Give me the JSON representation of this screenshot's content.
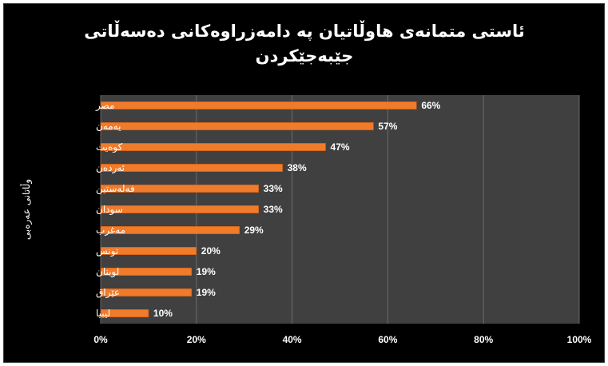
{
  "chart_data": {
    "type": "bar",
    "orientation": "horizontal",
    "title": "ئاستی متمانەی هاوڵاتیان پە دامەزراوەکانی  دەسەڵاتی جێبەجێکردن",
    "title_lines": [
      "ئاستی متمانەی هاوڵاتیان پە دامەزراوەکانی  دەسەڵاتی",
      "جێبەجێکردن"
    ],
    "ylabel": "وڵاتانی عەرەبی",
    "xlabel": "",
    "categories": [
      "مصر",
      "یەمەن",
      "کوەیت",
      "ئەردەن",
      "فەلەستین",
      "سودان",
      "مەغرب",
      "تونس",
      "لوبنان",
      "عێراق",
      "لیبیا"
    ],
    "values": [
      66,
      57,
      47,
      38,
      33,
      33,
      29,
      20,
      19,
      19,
      10
    ],
    "value_labels": [
      "66%",
      "57%",
      "47%",
      "38%",
      "33%",
      "33%",
      "29%",
      "20%",
      "19%",
      "19%",
      "10%"
    ],
    "xlim": [
      0,
      100
    ],
    "xticks": [
      "0%",
      "20%",
      "40%",
      "60%",
      "80%",
      "100%"
    ],
    "grid": true,
    "legend": "none",
    "colors": {
      "bar": "#f07b2b",
      "plot_background": "#404040",
      "chart_background": "#000000",
      "grid": "#6a6a6a",
      "text": "#ffffff"
    }
  }
}
